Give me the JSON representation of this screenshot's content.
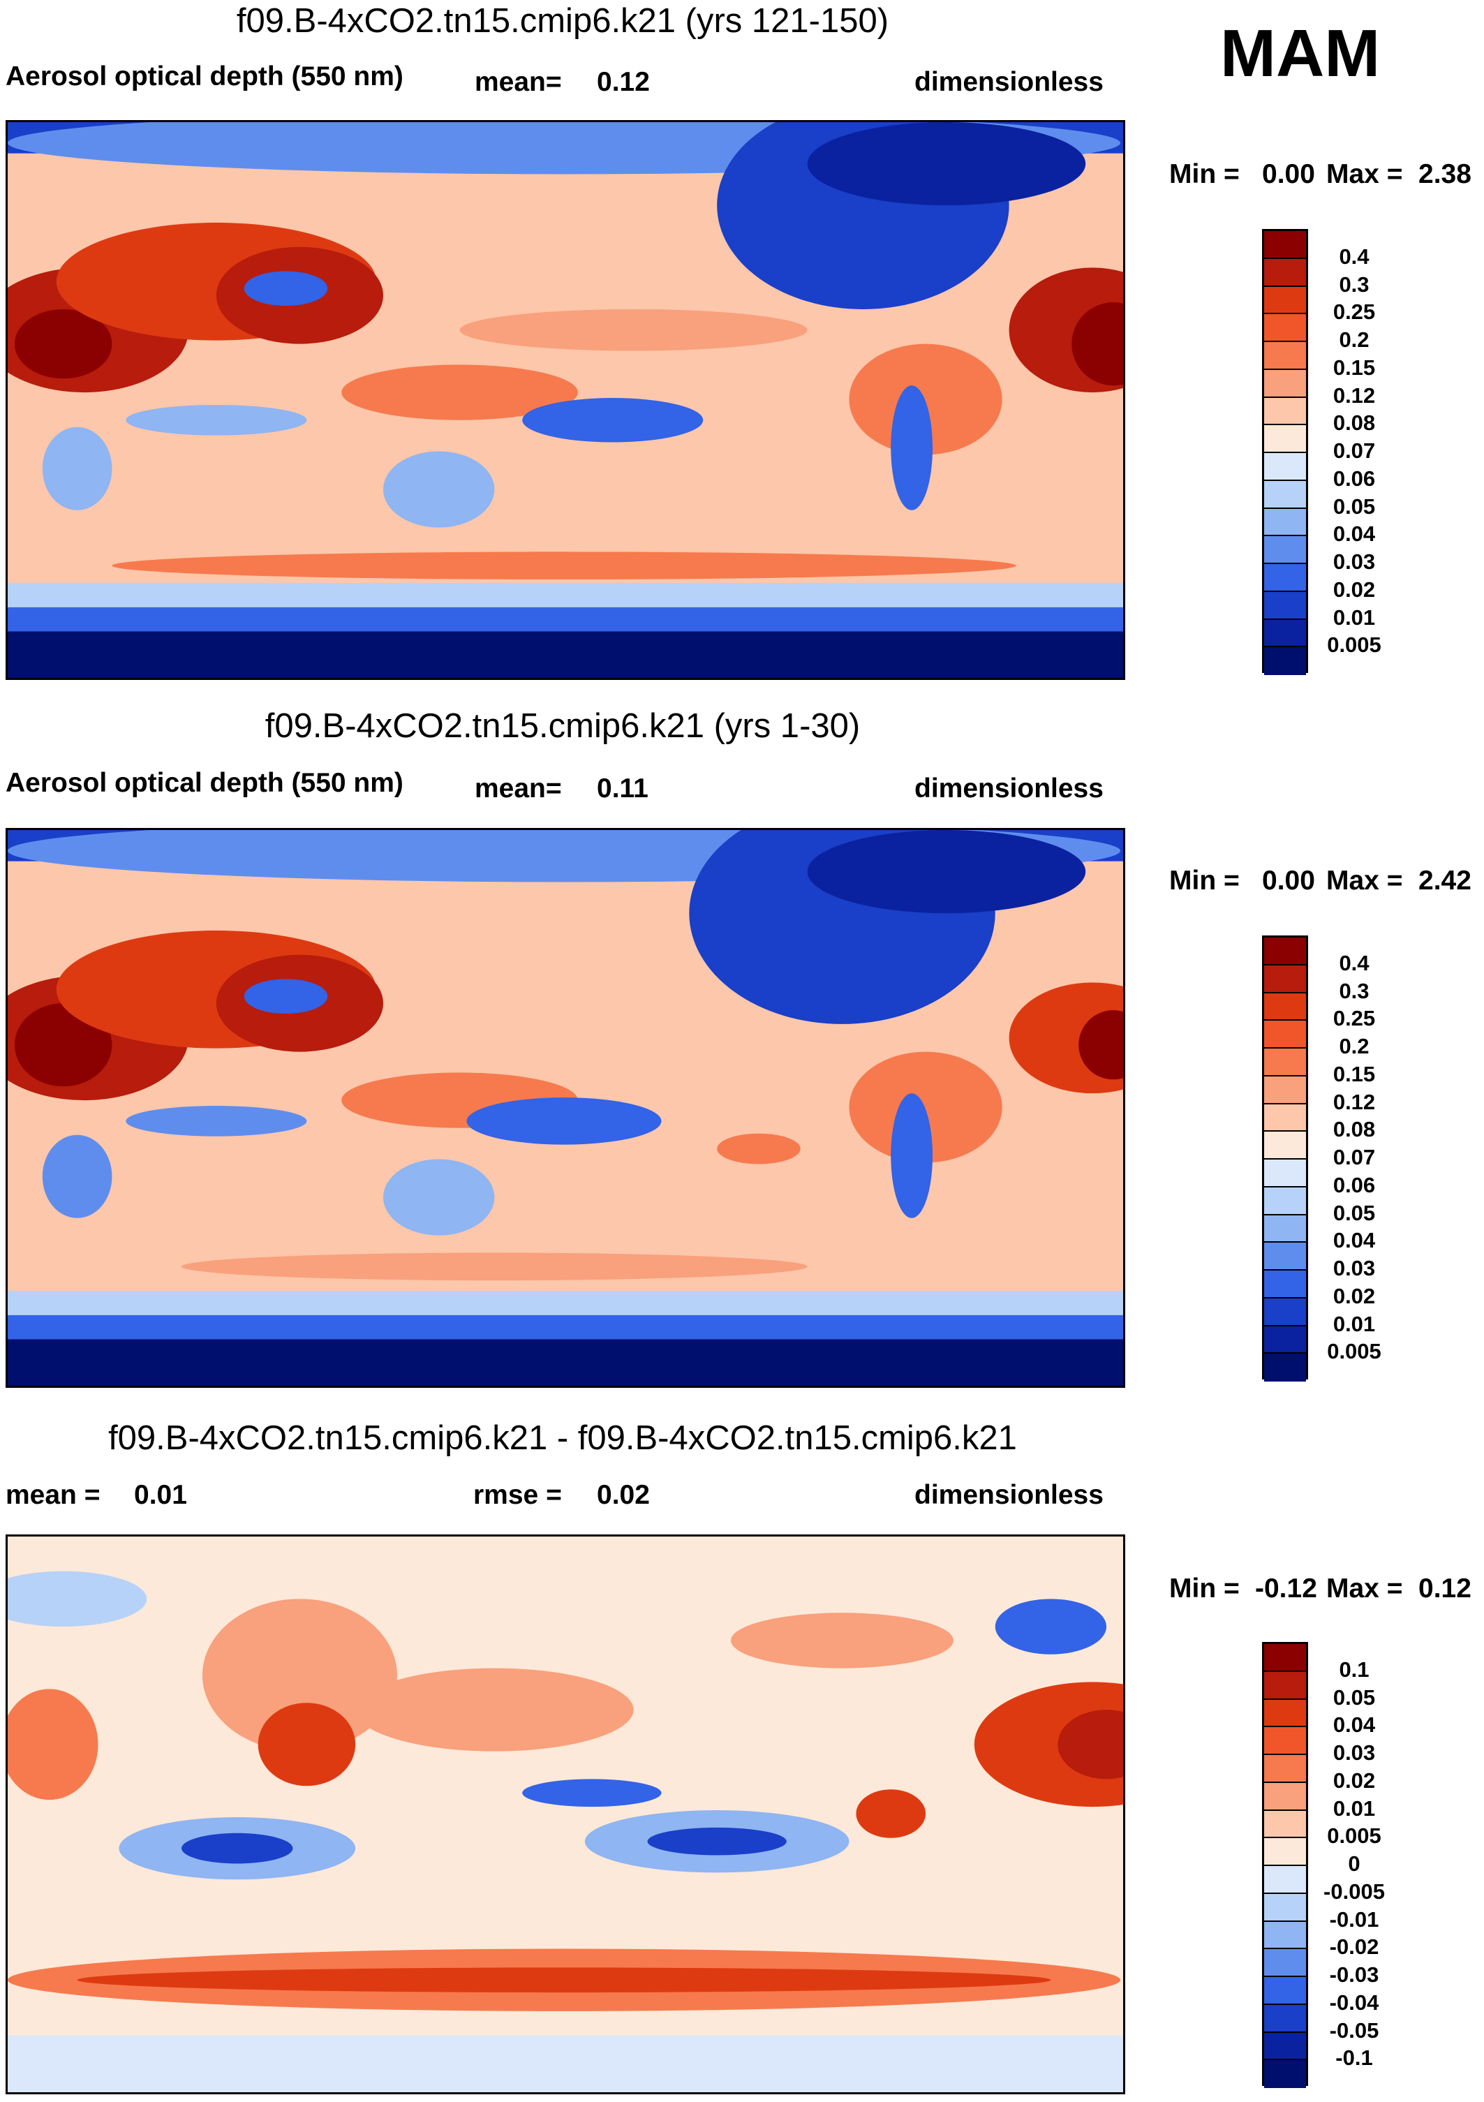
{
  "season": "MAM",
  "chart_data": [
    {
      "type": "heatmap",
      "title": "f09.B-4xCO2.tn15.cmip6.k21 (yrs 121-150)",
      "variable": "Aerosol optical depth (550 nm)",
      "mean_label": "mean=",
      "mean": "0.12",
      "units": "dimensionless",
      "min_label": "Min =",
      "min": "0.00",
      "max_label": "Max =",
      "max": "2.38",
      "levels": [
        "0.4",
        "0.3",
        "0.25",
        "0.2",
        "0.15",
        "0.12",
        "0.08",
        "0.07",
        "0.06",
        "0.05",
        "0.04",
        "0.03",
        "0.02",
        "0.01",
        "0.005"
      ],
      "colors": [
        "#8b0000",
        "#b71c0c",
        "#de3a12",
        "#f0562a",
        "#f67a4e",
        "#f9a07c",
        "#fcc7ab",
        "#fde9d9",
        "#dbe8fb",
        "#b7d2f8",
        "#8fb5f2",
        "#5f8ded",
        "#3363e6",
        "#1a3fc8",
        "#0a22a0",
        "#000e6e"
      ]
    },
    {
      "type": "heatmap",
      "title": "f09.B-4xCO2.tn15.cmip6.k21 (yrs 1-30)",
      "variable": "Aerosol optical depth (550 nm)",
      "mean_label": "mean=",
      "mean": "0.11",
      "units": "dimensionless",
      "min_label": "Min =",
      "min": "0.00",
      "max_label": "Max =",
      "max": "2.42",
      "levels": [
        "0.4",
        "0.3",
        "0.25",
        "0.2",
        "0.15",
        "0.12",
        "0.08",
        "0.07",
        "0.06",
        "0.05",
        "0.04",
        "0.03",
        "0.02",
        "0.01",
        "0.005"
      ],
      "colors": [
        "#8b0000",
        "#b71c0c",
        "#de3a12",
        "#f0562a",
        "#f67a4e",
        "#f9a07c",
        "#fcc7ab",
        "#fde9d9",
        "#dbe8fb",
        "#b7d2f8",
        "#8fb5f2",
        "#5f8ded",
        "#3363e6",
        "#1a3fc8",
        "#0a22a0",
        "#000e6e"
      ]
    },
    {
      "type": "heatmap",
      "title": "f09.B-4xCO2.tn15.cmip6.k21 - f09.B-4xCO2.tn15.cmip6.k21",
      "mean_label": "mean =",
      "mean": "0.01",
      "rmse_label": "rmse =",
      "rmse": "0.02",
      "units": "dimensionless",
      "min_label": "Min =",
      "min": "-0.12",
      "max_label": "Max =",
      "max": "0.12",
      "levels": [
        "0.1",
        "0.05",
        "0.04",
        "0.03",
        "0.02",
        "0.01",
        "0.005",
        "0",
        "-0.005",
        "-0.01",
        "-0.02",
        "-0.03",
        "-0.04",
        "-0.05",
        "-0.1"
      ],
      "colors": [
        "#8b0000",
        "#b71c0c",
        "#de3a12",
        "#f0562a",
        "#f67a4e",
        "#f9a07c",
        "#fcc7ab",
        "#fde9d9",
        "#dbe8fb",
        "#b7d2f8",
        "#8fb5f2",
        "#5f8ded",
        "#3363e6",
        "#1a3fc8",
        "#0a22a0",
        "#000e6e"
      ]
    }
  ]
}
